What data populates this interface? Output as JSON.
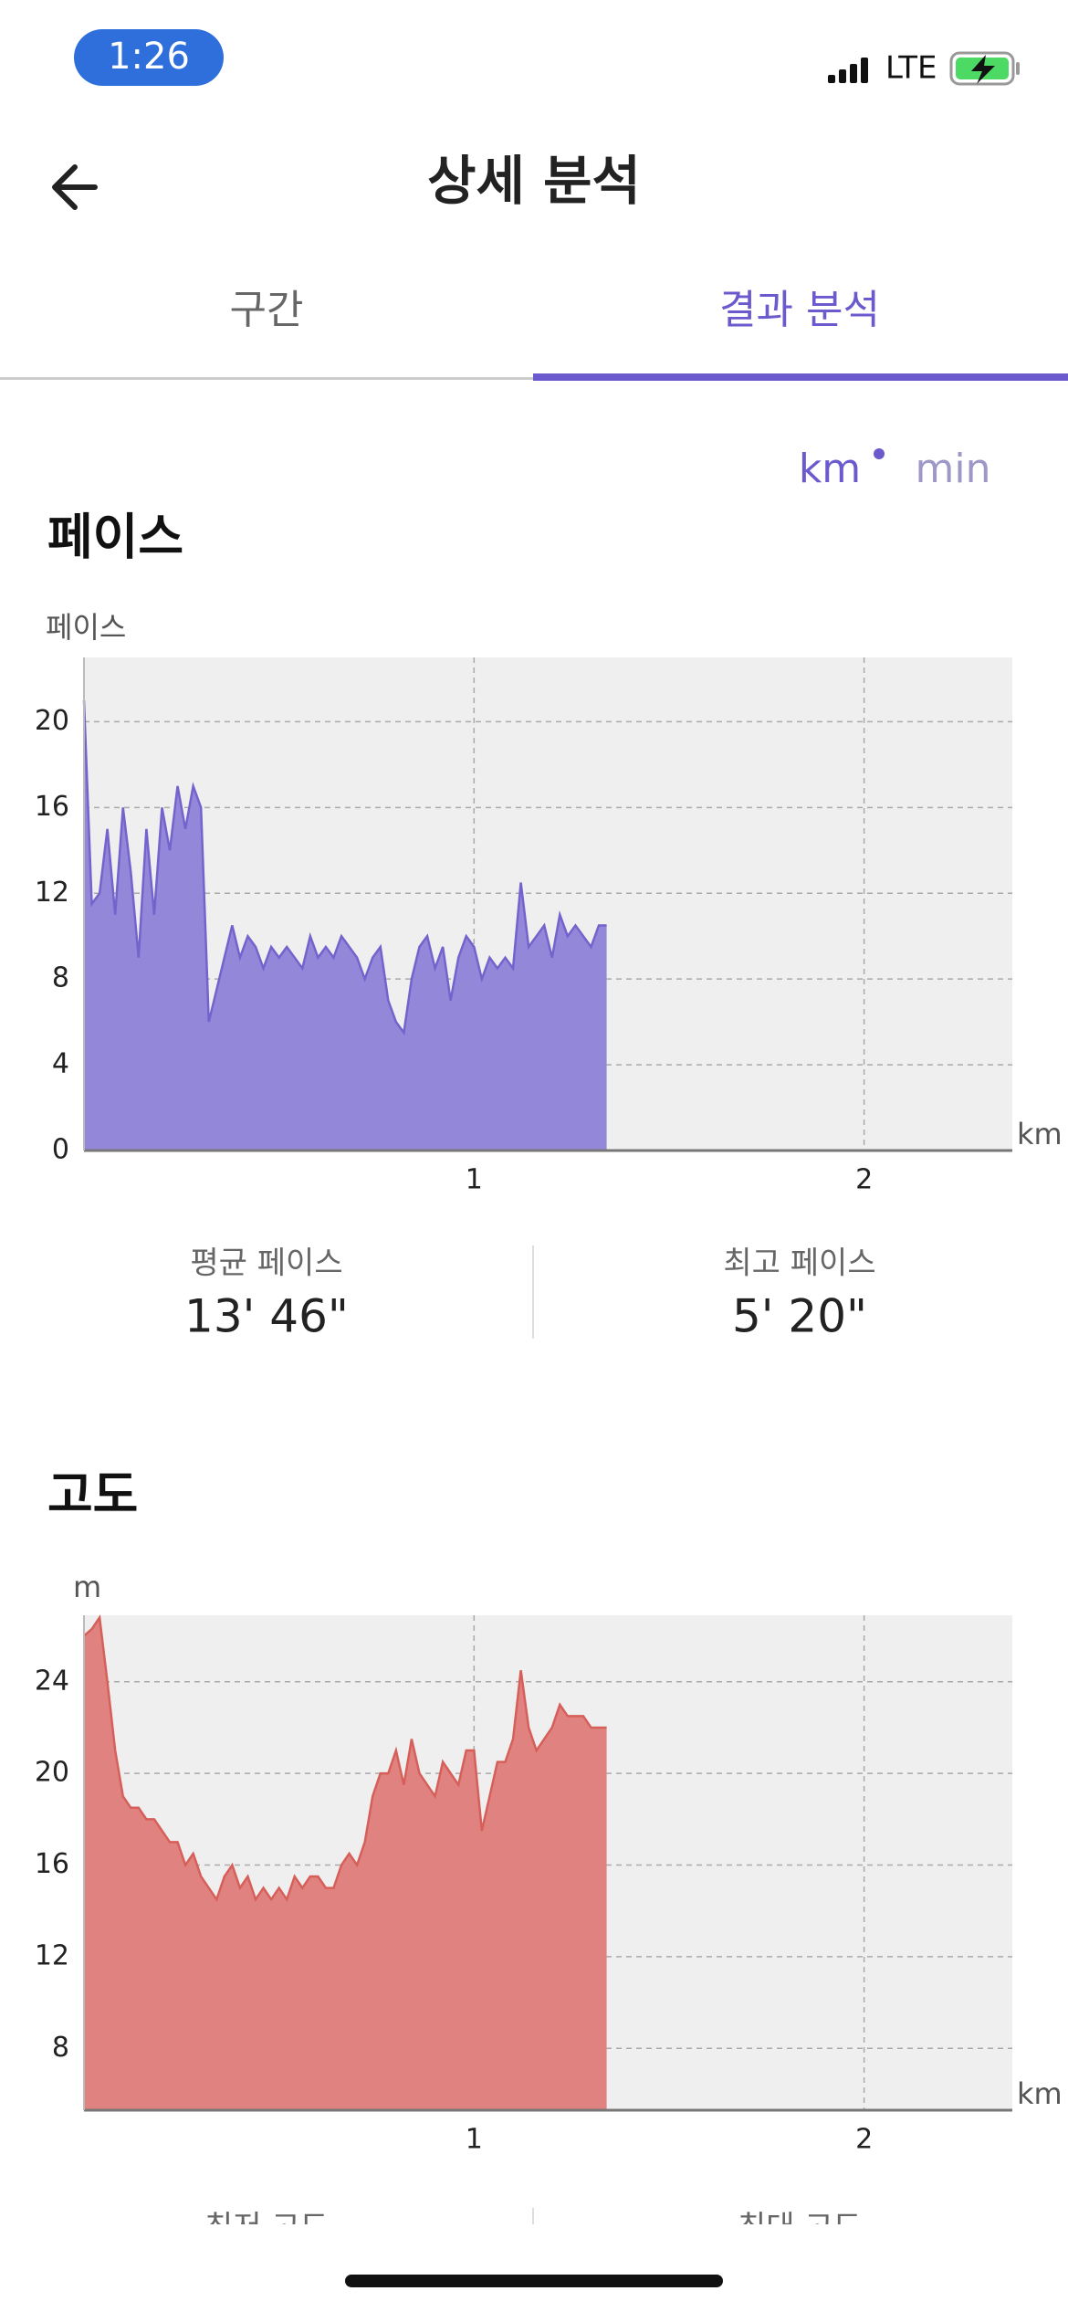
{
  "status_bar": {
    "time": "1:26",
    "network": "LTE"
  },
  "header": {
    "title": "상세 분석"
  },
  "tabs": [
    {
      "label": "구간",
      "active": false
    },
    {
      "label": "결과 분석",
      "active": true
    }
  ],
  "unit_toggle": {
    "options": [
      "km",
      "min"
    ],
    "selected": 0
  },
  "chart_data": [
    {
      "type": "area",
      "title": "페이스",
      "y_label": "페이스",
      "x_unit": "km",
      "x": [
        0,
        0.02,
        0.04,
        0.06,
        0.08,
        0.1,
        0.12,
        0.14,
        0.16,
        0.18,
        0.2,
        0.22,
        0.24,
        0.26,
        0.28,
        0.3,
        0.32,
        0.34,
        0.36,
        0.38,
        0.4,
        0.42,
        0.44,
        0.46,
        0.48,
        0.5,
        0.52,
        0.54,
        0.56,
        0.58,
        0.6,
        0.62,
        0.64,
        0.66,
        0.68,
        0.7,
        0.72,
        0.74,
        0.76,
        0.78,
        0.8,
        0.82,
        0.84,
        0.86,
        0.88,
        0.9,
        0.92,
        0.94,
        0.96,
        0.98,
        1,
        1.02,
        1.04,
        1.06,
        1.08,
        1.1,
        1.12,
        1.14,
        1.16,
        1.18,
        1.2,
        1.22,
        1.24,
        1.26,
        1.28,
        1.3,
        1.32,
        1.34
      ],
      "series": [
        {
          "color": "#9387d9",
          "edge_color": "#7463cc",
          "values": [
            21,
            11.5,
            12,
            15,
            11,
            16,
            13,
            9,
            15,
            11,
            16,
            14,
            17,
            15,
            17,
            16,
            6,
            7.5,
            9,
            10.5,
            9,
            10,
            9.5,
            8.5,
            9.5,
            9,
            9.5,
            9,
            8.5,
            10,
            9,
            9.5,
            9,
            10,
            9.5,
            9,
            8,
            9,
            9.5,
            7,
            6,
            5.5,
            8,
            9.5,
            10,
            8.5,
            9.5,
            7,
            9,
            10,
            9.5,
            8,
            9,
            8.5,
            9,
            8.5,
            12.5,
            9.5,
            10,
            10.5,
            9,
            11,
            10,
            10.5,
            10,
            9.5,
            10.5,
            10.5
          ]
        }
      ],
      "xlim": [
        0,
        2.38
      ],
      "ylim": [
        0,
        23
      ],
      "xticks": [
        1,
        2
      ],
      "yticks": [
        0,
        4,
        8,
        12,
        16,
        20
      ],
      "grid": true,
      "stats": [
        {
          "label": "평균 페이스",
          "value": "13' 46\""
        },
        {
          "label": "최고 페이스",
          "value": "5' 20\""
        }
      ]
    },
    {
      "type": "area",
      "title": "고도",
      "y_label": "m",
      "x_unit": "km",
      "x": [
        0,
        0.02,
        0.04,
        0.06,
        0.08,
        0.1,
        0.12,
        0.14,
        0.16,
        0.18,
        0.2,
        0.22,
        0.24,
        0.26,
        0.28,
        0.3,
        0.32,
        0.34,
        0.36,
        0.38,
        0.4,
        0.42,
        0.44,
        0.46,
        0.48,
        0.5,
        0.52,
        0.54,
        0.56,
        0.58,
        0.6,
        0.62,
        0.64,
        0.66,
        0.68,
        0.7,
        0.72,
        0.74,
        0.76,
        0.78,
        0.8,
        0.82,
        0.84,
        0.86,
        0.88,
        0.9,
        0.92,
        0.94,
        0.96,
        0.98,
        1,
        1.02,
        1.04,
        1.06,
        1.08,
        1.1,
        1.12,
        1.14,
        1.16,
        1.18,
        1.2,
        1.22,
        1.24,
        1.26,
        1.28,
        1.3,
        1.32,
        1.34
      ],
      "series": [
        {
          "color": "#e08380",
          "edge_color": "#d65f5a",
          "values": [
            26,
            26.3,
            26.8,
            24,
            21,
            19,
            18.5,
            18.5,
            18,
            18,
            17.5,
            17,
            17,
            16,
            16.5,
            15.5,
            15,
            14.5,
            15.5,
            16,
            15,
            15.5,
            14.5,
            15,
            14.5,
            15,
            14.5,
            15.5,
            15,
            15.5,
            15.5,
            15,
            15,
            16,
            16.5,
            16,
            17,
            19,
            20,
            20,
            21,
            19.5,
            21.5,
            20,
            19.5,
            19,
            20.5,
            20,
            19.5,
            21,
            21,
            17.5,
            19,
            20.5,
            20.5,
            21.5,
            24.5,
            22,
            21,
            21.5,
            22,
            23,
            22.5,
            22.5,
            22.5,
            22,
            22,
            22
          ]
        }
      ],
      "xlim": [
        0,
        2.38
      ],
      "ylim": [
        5.3,
        26.9
      ],
      "xticks": [
        1,
        2
      ],
      "yticks": [
        8,
        12,
        16,
        20,
        24
      ],
      "grid": true,
      "stats": [
        {
          "label": "최저 고도"
        },
        {
          "label": "최대 고도"
        }
      ]
    }
  ]
}
